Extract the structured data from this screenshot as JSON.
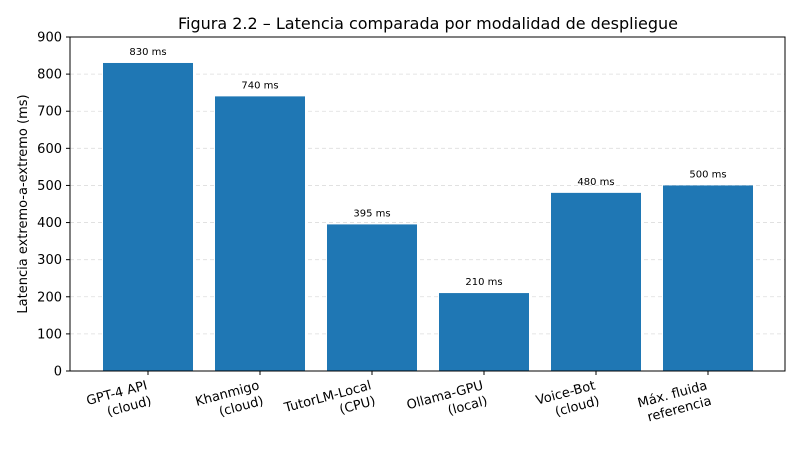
{
  "chart_data": {
    "type": "bar",
    "title": "Figura 2.2 – Latencia comparada por modalidad de despliegue",
    "xlabel": "",
    "ylabel": "Latencia extremo-a-extremo (ms)",
    "ylim": [
      0,
      900
    ],
    "yticks": [
      0,
      100,
      200,
      300,
      400,
      500,
      600,
      700,
      800,
      900
    ],
    "grid": "horizontal dashed",
    "categories": [
      [
        "GPT-4 API",
        "(cloud)"
      ],
      [
        "Khanmigo",
        "(cloud)"
      ],
      [
        "TutorLM-Local",
        "(CPU)"
      ],
      [
        "Ollama-GPU",
        "(local)"
      ],
      [
        "Voice-Bot",
        "(cloud)"
      ],
      [
        "Máx. fluida",
        "referencia"
      ]
    ],
    "values": [
      830,
      740,
      395,
      210,
      480,
      500
    ],
    "data_labels": [
      "830 ms",
      "740 ms",
      "395 ms",
      "210 ms",
      "480 ms",
      "500 ms"
    ],
    "bar_color": "#1f77b4",
    "grid_color": "#dddddd"
  }
}
